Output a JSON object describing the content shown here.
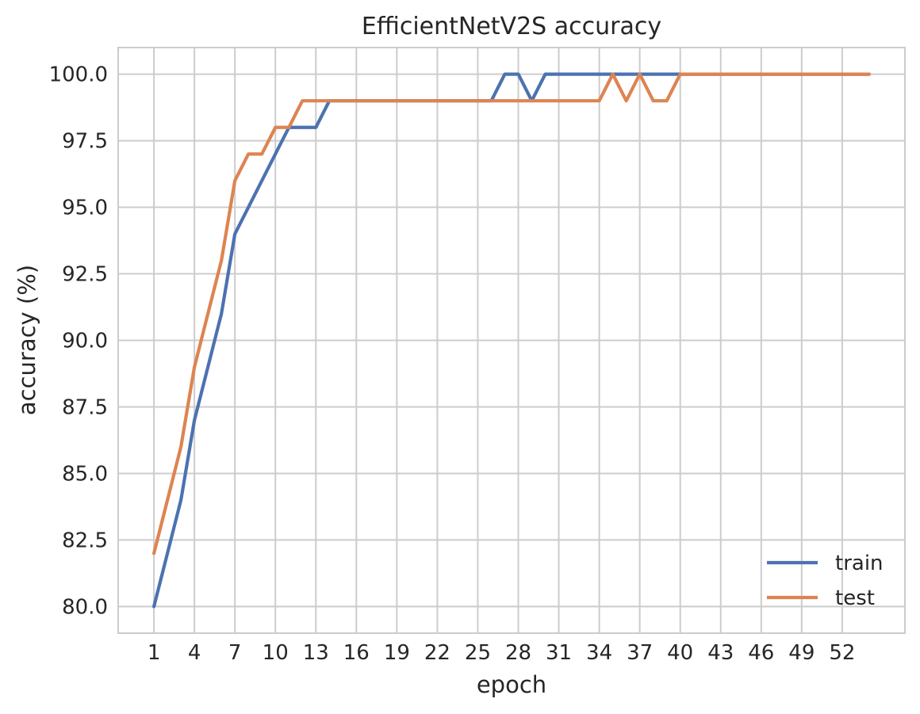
{
  "chart_data": {
    "type": "line",
    "title": "EfficientNetV2S accuracy",
    "xlabel": "epoch",
    "ylabel": "accuracy (%)",
    "xlim": [
      -1.65,
      56.65
    ],
    "ylim": [
      79.0,
      101.0
    ],
    "grid": true,
    "legend_position": "bottom-right",
    "x_ticks": [
      1,
      4,
      7,
      10,
      13,
      16,
      19,
      22,
      25,
      28,
      31,
      34,
      37,
      40,
      43,
      46,
      49,
      52
    ],
    "y_ticks": [
      "80.0",
      "82.5",
      "85.0",
      "87.5",
      "90.0",
      "92.5",
      "95.0",
      "97.5",
      "100.0"
    ],
    "x": [
      1,
      2,
      3,
      4,
      5,
      6,
      7,
      8,
      9,
      10,
      11,
      12,
      13,
      14,
      15,
      16,
      17,
      18,
      19,
      20,
      21,
      22,
      23,
      24,
      25,
      26,
      27,
      28,
      29,
      30,
      31,
      32,
      33,
      34,
      35,
      36,
      37,
      38,
      39,
      40,
      41,
      42,
      43,
      44,
      45,
      46,
      47,
      48,
      49,
      50,
      51,
      52,
      53,
      54
    ],
    "series": [
      {
        "name": "train",
        "color": "#4c72b0",
        "values": [
          80,
          82,
          84,
          87,
          89,
          91,
          94,
          95,
          96,
          97,
          98,
          98,
          98,
          99,
          99,
          99,
          99,
          99,
          99,
          99,
          99,
          99,
          99,
          99,
          99,
          99,
          100,
          100,
          99,
          100,
          100,
          100,
          100,
          100,
          100,
          100,
          100,
          100,
          100,
          100,
          100,
          100,
          100,
          100,
          100,
          100,
          100,
          100,
          100,
          100,
          100,
          100,
          100,
          100
        ]
      },
      {
        "name": "test",
        "color": "#dd8452",
        "values": [
          82,
          84,
          86,
          89,
          91,
          93,
          96,
          97,
          97,
          98,
          98,
          99,
          99,
          99,
          99,
          99,
          99,
          99,
          99,
          99,
          99,
          99,
          99,
          99,
          99,
          99,
          99,
          99,
          99,
          99,
          99,
          99,
          99,
          99,
          100,
          99,
          100,
          99,
          99,
          100,
          100,
          100,
          100,
          100,
          100,
          100,
          100,
          100,
          100,
          100,
          100,
          100,
          100,
          100
        ]
      }
    ]
  }
}
